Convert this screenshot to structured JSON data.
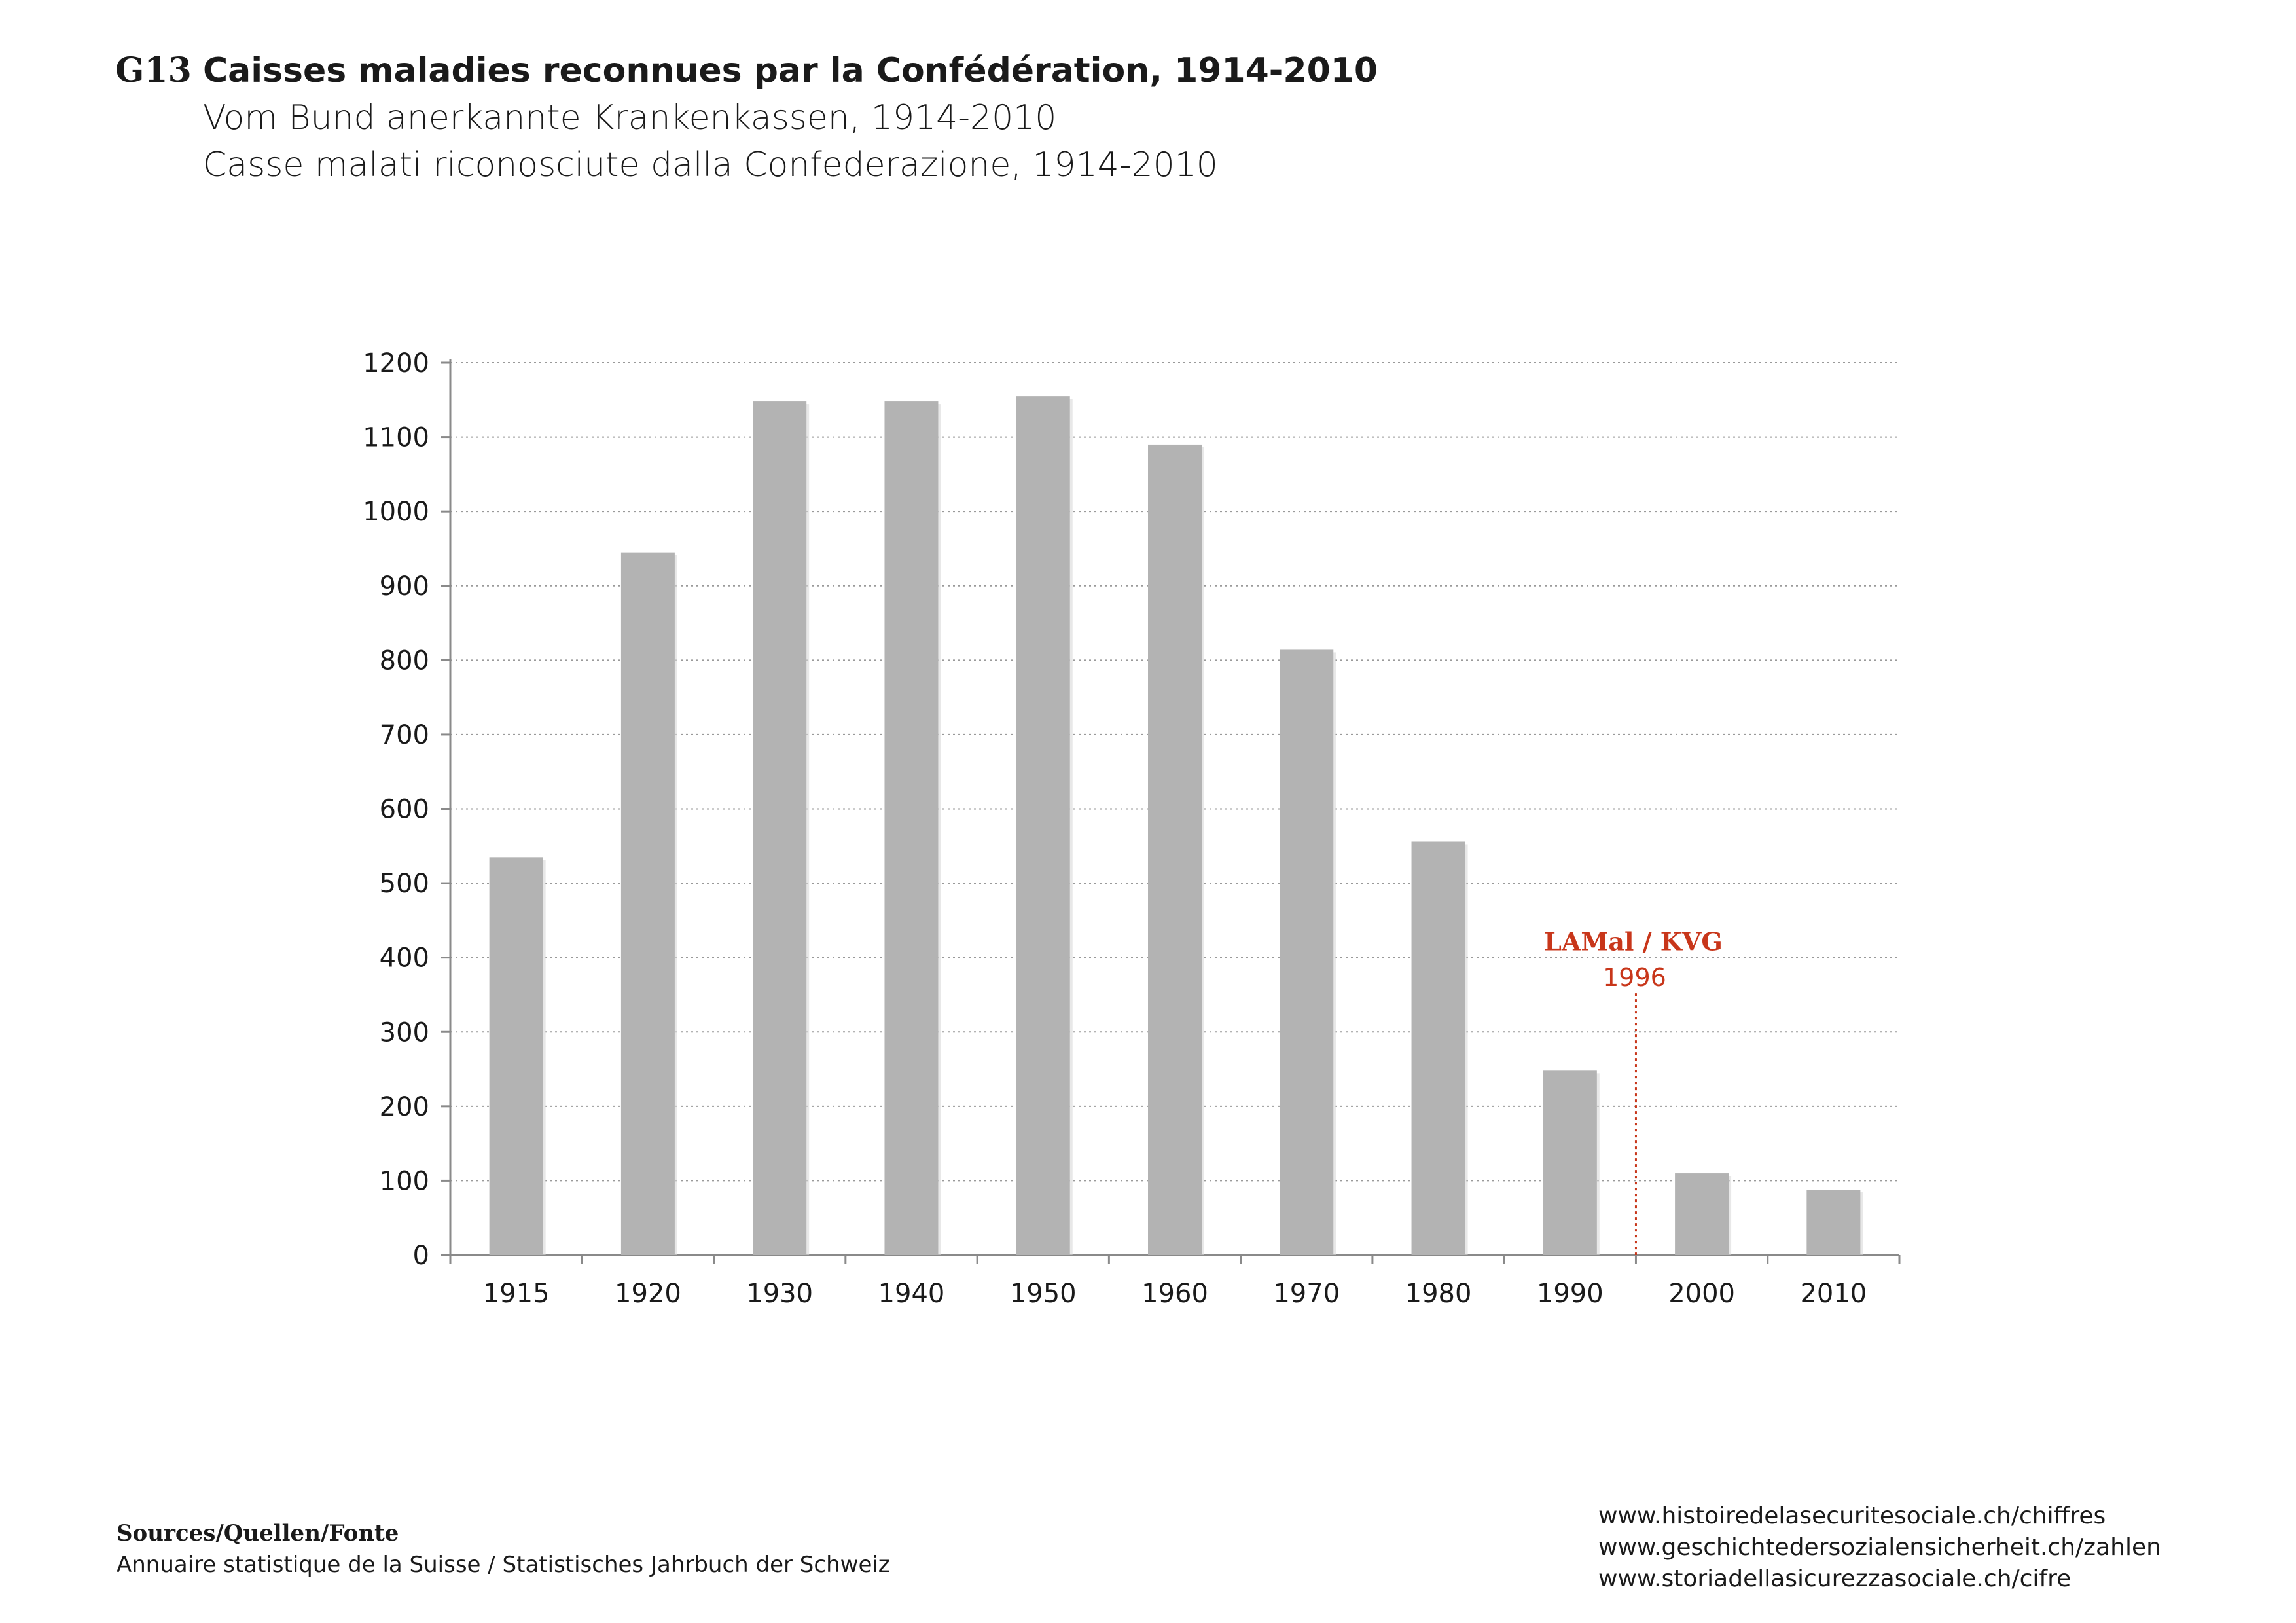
{
  "header": {
    "code": "G13",
    "title_fr": "Caisses maladies reconnues par la Confédération, 1914-2010",
    "title_de": "Vom Bund anerkannte Krankenkassen, 1914-2010",
    "title_it": "Casse malati riconosciute dalla Confederazione, 1914-2010"
  },
  "chart_data": {
    "type": "bar",
    "title": "Caisses maladies reconnues par la Confédération, 1914-2010",
    "xlabel": "",
    "ylabel": "",
    "categories": [
      "1915",
      "1920",
      "1930",
      "1940",
      "1950",
      "1960",
      "1970",
      "1980",
      "1990",
      "2000",
      "2010"
    ],
    "values": [
      535,
      945,
      1148,
      1148,
      1155,
      1090,
      814,
      556,
      248,
      110,
      88
    ],
    "ylim": [
      0,
      1200
    ],
    "yticks": [
      0,
      100,
      200,
      300,
      400,
      500,
      600,
      700,
      800,
      900,
      1000,
      1100,
      1200
    ],
    "grid": true,
    "bar_color": "#b3b3b3",
    "annotation": {
      "label": "LAMal / KVG",
      "year": "1996",
      "color": "#c8361a",
      "position": "between 1990 and 2000"
    }
  },
  "sources": {
    "label": "Sources/Quellen/Fonte",
    "text": "Annuaire statistique de la Suisse / Statistisches Jahrbuch der Schweiz"
  },
  "links": [
    "www.histoiredelasecuritesociale.ch/chiffres",
    "www.geschichtedersozialensicherheit.ch/zahlen",
    "www.storiadellasicurezzasociale.ch/cifre"
  ]
}
